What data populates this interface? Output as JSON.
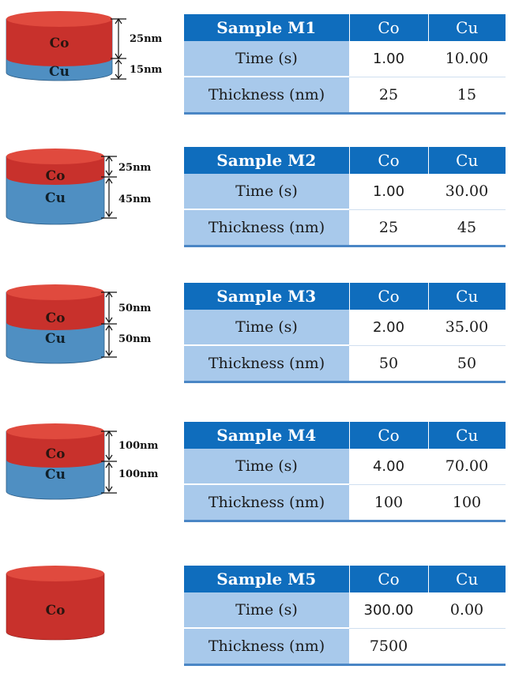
{
  "samples": [
    {
      "id": "M1",
      "diagram": {
        "top_label": "Co",
        "bottom_label": "Cu",
        "top_thickness": "25nm",
        "bottom_thickness": "15nm"
      },
      "table": {
        "header": "Sample M1",
        "col_co": "Co",
        "col_cu": "Cu",
        "row_time": "Time (s)",
        "time_co": "1.00",
        "time_cu": "10.00",
        "row_thickness": "Thickness (nm)",
        "thick_co": "25",
        "thick_cu": "15"
      }
    },
    {
      "id": "M2",
      "diagram": {
        "top_label": "Co",
        "bottom_label": "Cu",
        "top_thickness": "25nm",
        "bottom_thickness": "45nm"
      },
      "table": {
        "header": "Sample M2",
        "col_co": "Co",
        "col_cu": "Cu",
        "row_time": "Time (s)",
        "time_co": "1.00",
        "time_cu": "30.00",
        "row_thickness": "Thickness (nm)",
        "thick_co": "25",
        "thick_cu": "45"
      }
    },
    {
      "id": "M3",
      "diagram": {
        "top_label": "Co",
        "bottom_label": "Cu",
        "top_thickness": "50nm",
        "bottom_thickness": "50nm"
      },
      "table": {
        "header": "Sample M3",
        "col_co": "Co",
        "col_cu": "Cu",
        "row_time": "Time (s)",
        "time_co": "2.00",
        "time_cu": "35.00",
        "row_thickness": "Thickness (nm)",
        "thick_co": "50",
        "thick_cu": "50"
      }
    },
    {
      "id": "M4",
      "diagram": {
        "top_label": "Co",
        "bottom_label": "Cu",
        "top_thickness": "100nm",
        "bottom_thickness": "100nm"
      },
      "table": {
        "header": "Sample M4",
        "col_co": "Co",
        "col_cu": "Cu",
        "row_time": "Time (s)",
        "time_co": "4.00",
        "time_cu": "70.00",
        "row_thickness": "Thickness (nm)",
        "thick_co": "100",
        "thick_cu": "100"
      }
    },
    {
      "id": "M5",
      "diagram": {
        "top_label": "Co"
      },
      "table": {
        "header": "Sample M5",
        "col_co": "Co",
        "col_cu": "Cu",
        "row_time": "Time (s)",
        "time_co": "300.00",
        "time_cu": "0.00",
        "row_thickness": "Thickness (nm)",
        "thick_co": "7500",
        "thick_cu": ""
      }
    }
  ],
  "colors": {
    "co_layer": "#c8312c",
    "cu_layer": "#4f8fc2",
    "header": "#0f6dbd",
    "label_cell": "#a8c9eb"
  }
}
